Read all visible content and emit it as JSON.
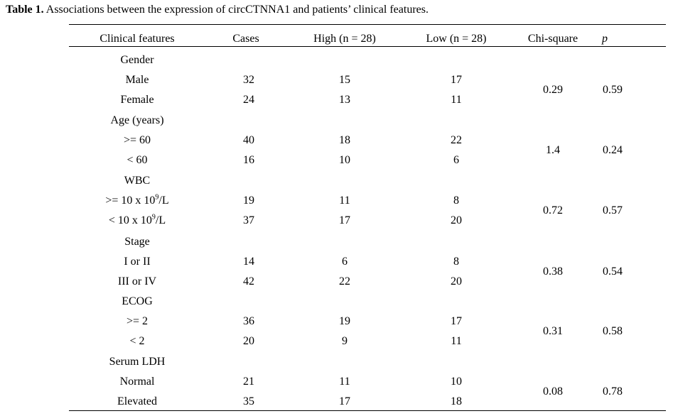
{
  "caption": {
    "label": "Table 1.",
    "text": " Associations between the expression of circCTNNA1 and patients’ clinical features."
  },
  "headers": [
    "Clinical features",
    "Cases",
    "High (n = 28)",
    "Low (n = 28)",
    "Chi-square",
    "p"
  ],
  "groups": [
    {
      "name": "Gender",
      "chi_square": "0.29",
      "p": "0.59",
      "rows": [
        {
          "feature": "Male",
          "cases": "32",
          "high": "15",
          "low": "17"
        },
        {
          "feature": "Female",
          "cases": "24",
          "high": "13",
          "low": "11"
        }
      ]
    },
    {
      "name": "Age (years)",
      "chi_square": "1.4",
      "p": "0.24",
      "rows": [
        {
          "feature": ">= 60",
          "cases": "40",
          "high": "18",
          "low": "22"
        },
        {
          "feature": "< 60",
          "cases": "16",
          "high": "10",
          "low": "6"
        }
      ]
    },
    {
      "name": "WBC",
      "chi_square": "0.72",
      "p": "0.57",
      "rows": [
        {
          "feature": ">= 10 x 10",
          "feature_sup": "9",
          "feature_suffix": "/L",
          "cases": "19",
          "high": "11",
          "low": "8"
        },
        {
          "feature": "< 10 x 10",
          "feature_sup": "9",
          "feature_suffix": "/L",
          "cases": "37",
          "high": "17",
          "low": "20"
        }
      ]
    },
    {
      "name": "Stage",
      "chi_square": "0.38",
      "p": "0.54",
      "rows": [
        {
          "feature": "I or II",
          "cases": "14",
          "high": "6",
          "low": "8"
        },
        {
          "feature": "III or IV",
          "cases": "42",
          "high": "22",
          "low": "20"
        }
      ]
    },
    {
      "name": "ECOG",
      "chi_square": "0.31",
      "p": "0.58",
      "rows": [
        {
          "feature": ">= 2",
          "cases": "36",
          "high": "19",
          "low": "17"
        },
        {
          "feature": "< 2",
          "cases": "20",
          "high": "9",
          "low": "11"
        }
      ]
    },
    {
      "name": "Serum LDH",
      "chi_square": "0.08",
      "p": "0.78",
      "rows": [
        {
          "feature": "Normal",
          "cases": "21",
          "high": "11",
          "low": "10"
        },
        {
          "feature": "Elevated",
          "cases": "35",
          "high": "17",
          "low": "18"
        }
      ]
    }
  ]
}
